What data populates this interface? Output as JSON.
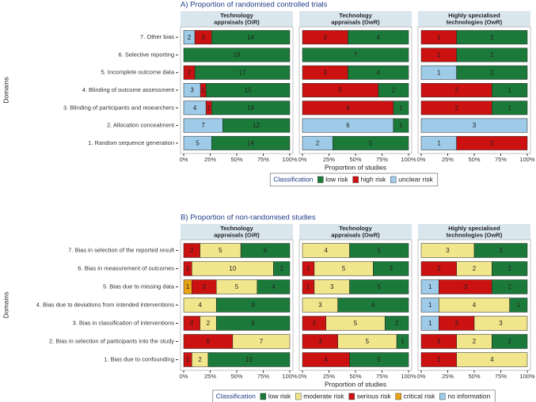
{
  "chart_data": [
    {
      "type": "bar",
      "orientation": "horizontal",
      "stacked": true,
      "title": "A)  Proportion of randomised controlled trials",
      "xlabel": "Proportion of studies",
      "ylabel": "Domains",
      "categories": [
        "7. Other bias",
        "6. Selective reporting",
        "5. Incomplete outcome data",
        "4. Blinding of outcome assessment",
        "3. Blinding of participants and researchers",
        "2. Allocation concealment",
        "1. Random sequence generation"
      ],
      "facets": [
        {
          "title": [
            "Technology",
            "appraisals (OiR)"
          ]
        },
        {
          "title": [
            "Technology",
            "appraisals (OwR)"
          ]
        },
        {
          "title": [
            "Highly specialised",
            "technologies (OwR)"
          ]
        }
      ],
      "series": [
        {
          "name": "low risk",
          "color": "#1b7a3a",
          "values": [
            [
              14,
              19,
              17,
              15,
              14,
              12,
              14
            ],
            [
              4,
              7,
              4,
              2,
              1,
              1,
              5
            ],
            [
              2,
              2,
              2,
              1,
              1,
              null,
              null
            ]
          ]
        },
        {
          "name": "high risk",
          "color": "#cc1111",
          "values": [
            [
              3,
              null,
              2,
              1,
              1,
              null,
              null
            ],
            [
              3,
              null,
              3,
              5,
              6,
              null,
              null
            ],
            [
              1,
              1,
              null,
              2,
              2,
              null,
              2
            ]
          ]
        },
        {
          "name": "unclear risk",
          "color": "#9ecbe8",
          "values": [
            [
              2,
              null,
              null,
              3,
              4,
              7,
              5
            ],
            [
              null,
              null,
              null,
              null,
              null,
              6,
              2
            ],
            [
              null,
              null,
              1,
              null,
              null,
              3,
              1
            ]
          ]
        }
      ],
      "xlim": [
        0,
        1
      ],
      "xticks": [
        {
          "value": 0,
          "label": "0%"
        },
        {
          "value": 0.25,
          "label": "25%"
        },
        {
          "value": 0.5,
          "label": "50%"
        },
        {
          "value": 0.75,
          "label": "75%"
        },
        {
          "value": 1,
          "label": "100%"
        }
      ],
      "legend": {
        "title": "Classification",
        "position": "bottom"
      }
    },
    {
      "type": "bar",
      "orientation": "horizontal",
      "stacked": true,
      "title": "B)  Proportion of non-randomised studies",
      "xlabel": "Proportion of studies",
      "ylabel": "Domains",
      "categories": [
        "7. Bias in selection of the reported result",
        "6. Bias in measurement of outcomes",
        "5. Bias due to missing data",
        "4. Bias due to deviations from intended interventions",
        "3. Bias in classification of interventions",
        "2. Bias in selection of participants into the study",
        "1. Bias due to confounding"
      ],
      "facets": [
        {
          "title": [
            "Technology",
            "appraisals (OiR)"
          ]
        },
        {
          "title": [
            "Technology",
            "appraisals (OwR)"
          ]
        },
        {
          "title": [
            "Highly specialised",
            "technologies (OwR)"
          ]
        }
      ],
      "series": [
        {
          "name": "low risk",
          "color": "#1b7a3a",
          "values": [
            [
              6,
              2,
              4,
              9,
              9,
              null,
              10
            ],
            [
              5,
              3,
              5,
              6,
              2,
              1,
              5
            ],
            [
              3,
              2,
              2,
              1,
              null,
              2,
              null
            ]
          ]
        },
        {
          "name": "moderate risk",
          "color": "#f2e68c",
          "values": [
            [
              5,
              10,
              5,
              4,
              2,
              7,
              2
            ],
            [
              4,
              5,
              3,
              3,
              5,
              5,
              null
            ],
            [
              3,
              2,
              null,
              4,
              3,
              2,
              4
            ]
          ]
        },
        {
          "name": "serious risk",
          "color": "#cc1111",
          "values": [
            [
              2,
              1,
              3,
              null,
              2,
              6,
              1
            ],
            [
              null,
              1,
              1,
              null,
              2,
              3,
              4
            ],
            [
              null,
              2,
              3,
              null,
              2,
              2,
              2
            ]
          ]
        },
        {
          "name": "critical risk",
          "color": "#e8a317",
          "values": [
            [
              null,
              null,
              1,
              null,
              null,
              null,
              null
            ],
            [
              null,
              null,
              null,
              null,
              null,
              null,
              null
            ],
            [
              null,
              null,
              null,
              null,
              null,
              null,
              null
            ]
          ]
        },
        {
          "name": "no information",
          "color": "#9ecbe8",
          "values": [
            [
              null,
              null,
              null,
              null,
              null,
              null,
              null
            ],
            [
              null,
              null,
              null,
              null,
              null,
              null,
              null
            ],
            [
              null,
              null,
              1,
              1,
              1,
              null,
              null
            ]
          ]
        }
      ],
      "xlim": [
        0,
        1
      ],
      "xticks": [
        {
          "value": 0,
          "label": "0%"
        },
        {
          "value": 0.25,
          "label": "25%"
        },
        {
          "value": 0.5,
          "label": "50%"
        },
        {
          "value": 0.75,
          "label": "75%"
        },
        {
          "value": 1,
          "label": "100%"
        }
      ],
      "legend": {
        "title": "Classification",
        "position": "bottom"
      }
    }
  ]
}
